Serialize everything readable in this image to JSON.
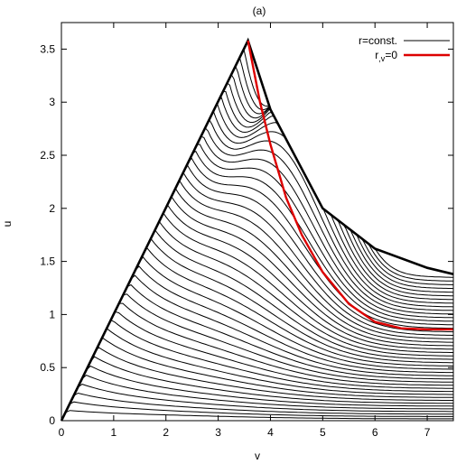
{
  "chart_data": {
    "type": "line",
    "title": "(a)",
    "xlabel": "v",
    "ylabel": "u",
    "xlim": [
      0,
      7.5
    ],
    "ylim": [
      0,
      3.75
    ],
    "x_ticks": [
      "0",
      "1",
      "2",
      "3",
      "4",
      "5",
      "6",
      "7"
    ],
    "x_tick_values": [
      0,
      1,
      2,
      3,
      4,
      5,
      6,
      7
    ],
    "y_ticks": [
      "0",
      "0.5",
      "1",
      "1.5",
      "2",
      "2.5",
      "3",
      "3.5"
    ],
    "y_tick_values": [
      0,
      0.5,
      1,
      1.5,
      2,
      2.5,
      3,
      3.5
    ],
    "grid": false,
    "legend": {
      "position": "top-right",
      "entries": [
        "r=const.",
        "r,v=0"
      ]
    },
    "legend_subscript": ",v",
    "series": [
      {
        "name": "r=const.",
        "color": "#000000",
        "peak": {
          "x": 3.57,
          "y": 3.58
        },
        "boundary": [
          [
            0,
            0
          ],
          [
            3.57,
            3.58
          ],
          [
            4.0,
            2.93
          ],
          [
            5.0,
            2.0
          ],
          [
            6.0,
            1.62
          ],
          [
            7.0,
            1.44
          ],
          [
            7.5,
            1.38
          ]
        ],
        "curve_count": 44
      },
      {
        "name": "r,v=0",
        "color": "#dd0000",
        "points": [
          [
            3.57,
            3.58
          ],
          [
            3.8,
            3.0
          ],
          [
            4.0,
            2.6
          ],
          [
            4.3,
            2.1
          ],
          [
            4.6,
            1.75
          ],
          [
            5.0,
            1.4
          ],
          [
            5.5,
            1.1
          ],
          [
            6.0,
            0.93
          ],
          [
            6.5,
            0.87
          ],
          [
            7.0,
            0.86
          ],
          [
            7.5,
            0.86
          ]
        ]
      }
    ]
  }
}
